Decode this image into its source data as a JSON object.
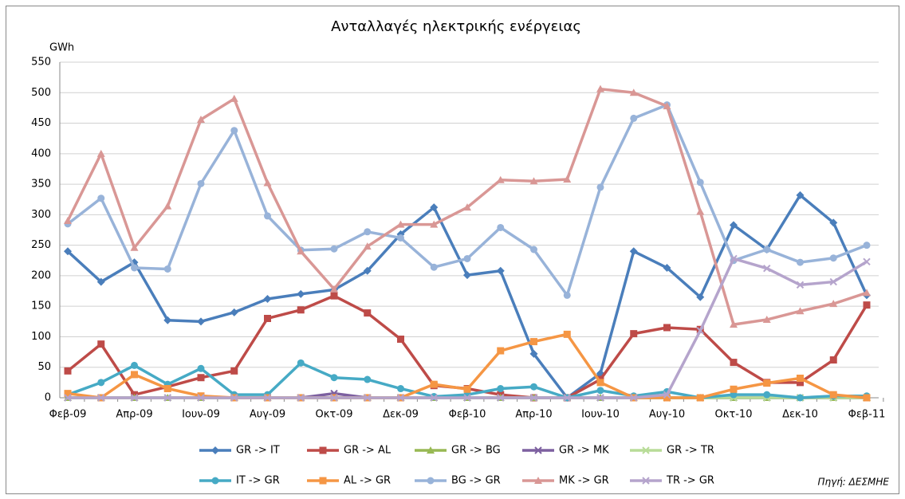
{
  "chart_data": {
    "type": "line",
    "title": "Ανταλλαγές ηλεκτρικής ενέργειας",
    "ylabel": "GWh",
    "source": "Πηγή: ΔΕΣΜΗΕ",
    "categories": [
      "Φεβ-09",
      null,
      "Απρ-09",
      null,
      "Ιουν-09",
      null,
      "Αυγ-09",
      null,
      "Οκτ-09",
      null,
      "Δεκ-09",
      null,
      "Φεβ-10",
      null,
      "Απρ-10",
      null,
      "Ιουν-10",
      null,
      "Αυγ-10",
      null,
      "Οκτ-10",
      null,
      "Δεκ-10",
      null,
      "Φεβ-11"
    ],
    "ylim": [
      0,
      550
    ],
    "yticks": [
      0,
      50,
      100,
      150,
      200,
      250,
      300,
      350,
      400,
      450,
      500,
      550
    ],
    "grid": true,
    "series": [
      {
        "name": "GR -> IT",
        "color": "#4a7ebb",
        "marker": "diamond",
        "values": [
          240,
          190,
          222,
          127,
          125,
          140,
          162,
          170,
          177,
          208,
          268,
          312,
          201,
          208,
          72,
          0,
          40,
          240,
          213,
          165,
          283,
          243,
          332,
          287,
          168
        ]
      },
      {
        "name": "GR -> AL",
        "color": "#be4b48",
        "marker": "square",
        "values": [
          44,
          88,
          5,
          18,
          33,
          44,
          130,
          144,
          167,
          139,
          96,
          20,
          15,
          5,
          0,
          0,
          30,
          105,
          115,
          112,
          58,
          25,
          25,
          62,
          152
        ]
      },
      {
        "name": "GR -> BG",
        "color": "#98b954",
        "marker": "triangle",
        "values": [
          0,
          0,
          0,
          0,
          0,
          0,
          0,
          0,
          0,
          0,
          0,
          0,
          0,
          0,
          0,
          0,
          0,
          0,
          0,
          0,
          0,
          0,
          0,
          0,
          0
        ]
      },
      {
        "name": "GR -> MK",
        "color": "#7d60a0",
        "marker": "x",
        "values": [
          0,
          0,
          0,
          0,
          0,
          0,
          0,
          0,
          7,
          0,
          0,
          0,
          0,
          0,
          0,
          0,
          0,
          0,
          0,
          0,
          0,
          0,
          0,
          0,
          0
        ]
      },
      {
        "name": "GR -> TR",
        "color": "#b8dc98",
        "marker": "x",
        "values": [
          0,
          0,
          0,
          0,
          0,
          0,
          0,
          0,
          0,
          0,
          0,
          0,
          0,
          0,
          0,
          0,
          0,
          0,
          0,
          0,
          0,
          0,
          0,
          0,
          0
        ]
      },
      {
        "name": "IT -> GR",
        "color": "#46aac5",
        "marker": "circle",
        "values": [
          5,
          25,
          53,
          22,
          48,
          5,
          5,
          57,
          33,
          30,
          15,
          2,
          5,
          15,
          18,
          0,
          12,
          3,
          10,
          0,
          5,
          5,
          0,
          3,
          3
        ]
      },
      {
        "name": "AL -> GR",
        "color": "#f59644",
        "marker": "square",
        "values": [
          7,
          0,
          38,
          15,
          3,
          0,
          0,
          0,
          0,
          0,
          0,
          22,
          14,
          77,
          92,
          104,
          25,
          0,
          0,
          0,
          14,
          24,
          32,
          5,
          0
        ]
      },
      {
        "name": "BG -> GR",
        "color": "#98b3d9",
        "marker": "circle",
        "values": [
          285,
          327,
          213,
          211,
          351,
          438,
          298,
          242,
          244,
          272,
          262,
          214,
          228,
          279,
          243,
          168,
          345,
          458,
          480,
          353,
          225,
          243,
          222,
          229,
          250
        ]
      },
      {
        "name": "MK -> GR",
        "color": "#d99795",
        "marker": "triangle",
        "values": [
          290,
          400,
          246,
          314,
          456,
          490,
          352,
          240,
          178,
          248,
          284,
          284,
          312,
          357,
          355,
          358,
          506,
          500,
          478,
          305,
          120,
          128,
          142,
          154,
          172
        ]
      },
      {
        "name": "TR -> GR",
        "color": "#b5a4cc",
        "marker": "x",
        "values": [
          0,
          0,
          0,
          0,
          0,
          0,
          0,
          0,
          0,
          0,
          0,
          0,
          0,
          0,
          0,
          0,
          0,
          0,
          5,
          110,
          228,
          212,
          185,
          190,
          223
        ]
      }
    ]
  }
}
